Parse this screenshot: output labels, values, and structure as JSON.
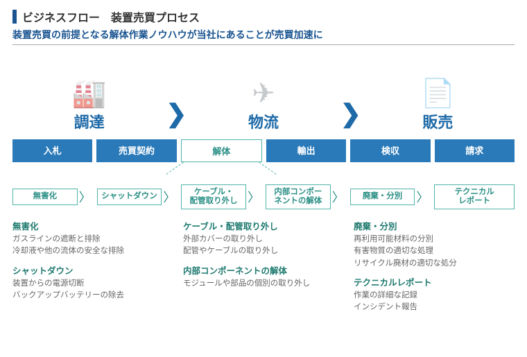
{
  "colors": {
    "accent_bar": "#1a5490",
    "title_text": "#333333",
    "subtitle_text": "#1a5490",
    "stage_text": "#1e6aa8",
    "chevron": "#1e6aa8",
    "process_bg": "#2a7ab9",
    "highlight_border": "#4fb3a9",
    "highlight_text": "#2a8f85",
    "sub_border": "#4fb3a9",
    "sub_text": "#2a8f85",
    "detail_heading": "#1e7a6f",
    "detail_text": "#666666"
  },
  "title": "ビジネスフロー　装置売買プロセス",
  "subtitle": "装置売買の前提となる解体作業ノウハウが当社にあることが売買加速に",
  "stages": [
    {
      "label": "調達",
      "icon": "🏭"
    },
    {
      "label": "物流",
      "icon": "✈"
    },
    {
      "label": "販売",
      "icon": "📄"
    }
  ],
  "process_steps": [
    {
      "label": "入札",
      "highlighted": false
    },
    {
      "label": "売買契約",
      "highlighted": false
    },
    {
      "label": "解体",
      "highlighted": true
    },
    {
      "label": "輸出",
      "highlighted": false
    },
    {
      "label": "検収",
      "highlighted": false
    },
    {
      "label": "請求",
      "highlighted": false
    }
  ],
  "sub_steps": [
    {
      "label": "無害化"
    },
    {
      "label": "シャットダウン"
    },
    {
      "label": "ケーブル・\n配管取り外し"
    },
    {
      "label": "内部コンポー\nネントの解体"
    },
    {
      "label": "廃棄・分別"
    },
    {
      "label": "テクニカル\nレポート"
    }
  ],
  "details": [
    {
      "blocks": [
        {
          "heading": "無害化",
          "lines": [
            "ガスラインの遮断と排除",
            "冷却液や他の流体の安全な排除"
          ]
        },
        {
          "heading": "シャットダウン",
          "lines": [
            "装置からの電源切断",
            "バックアップバッテリーの除去"
          ]
        }
      ]
    },
    {
      "blocks": [
        {
          "heading": "ケーブル・配管取り外し",
          "lines": [
            "外部カバーの取り外し",
            "配管やケーブルの取り外し"
          ]
        },
        {
          "heading": "内部コンポーネントの解体",
          "lines": [
            "モジュールや部品の個別の取り外し"
          ]
        }
      ]
    },
    {
      "blocks": [
        {
          "heading": "廃棄・分別",
          "lines": [
            "再利用可能材料の分別",
            "有害物質の適切な処理",
            "リサイクル廃材の適切な処分"
          ]
        },
        {
          "heading": "テクニカルレポート",
          "lines": [
            "作業の詳細な記録",
            "インシデント報告"
          ]
        }
      ]
    }
  ]
}
